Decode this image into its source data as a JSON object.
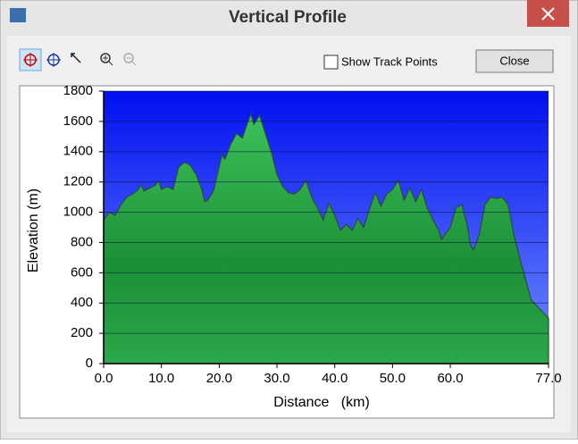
{
  "window": {
    "title": "Vertical Profile",
    "checkbox": "Show Track Points",
    "button": "Close"
  },
  "chart_data": {
    "type": "area",
    "xlabel": "Distance   (km)",
    "ylabel": "Elevation (m)",
    "x": [
      0,
      1,
      2,
      3,
      4,
      5,
      6,
      6.5,
      7,
      8,
      9,
      9.5,
      10,
      11,
      12,
      13,
      14,
      15,
      16,
      17,
      17.5,
      18,
      19,
      20,
      20.5,
      21,
      22,
      23,
      24,
      25,
      25.5,
      26,
      27,
      28,
      29,
      30,
      31,
      32,
      33,
      34,
      35,
      36,
      37,
      38,
      39,
      40,
      41,
      42,
      43,
      44,
      45,
      46,
      47,
      48,
      49,
      50,
      51,
      52,
      53,
      54,
      55,
      56,
      57,
      58,
      58.5,
      59,
      60,
      61,
      62,
      63,
      63.5,
      64,
      65,
      66,
      67,
      68,
      69,
      70,
      71,
      72,
      73,
      74,
      75,
      76,
      77
    ],
    "values": [
      950,
      1000,
      980,
      1050,
      1100,
      1120,
      1150,
      1180,
      1140,
      1160,
      1180,
      1210,
      1150,
      1170,
      1150,
      1300,
      1330,
      1310,
      1250,
      1150,
      1070,
      1080,
      1140,
      1300,
      1380,
      1350,
      1450,
      1520,
      1490,
      1600,
      1650,
      1580,
      1640,
      1520,
      1400,
      1250,
      1170,
      1130,
      1120,
      1150,
      1210,
      1100,
      1030,
      950,
      1060,
      980,
      880,
      920,
      880,
      960,
      900,
      1020,
      1130,
      1040,
      1120,
      1150,
      1210,
      1080,
      1160,
      1070,
      1150,
      1030,
      950,
      880,
      820,
      850,
      900,
      1030,
      1050,
      900,
      780,
      750,
      850,
      1050,
      1100,
      1090,
      1100,
      1050,
      850,
      700,
      560,
      420,
      380,
      340,
      300
    ],
    "color": "#1f9e3e",
    "background": "#0a1cff",
    "xlim": [
      0,
      77
    ],
    "ylim": [
      0,
      1800
    ],
    "xticks": [
      {
        "value": 0,
        "label": "0.0"
      },
      {
        "value": 10,
        "label": "10.0"
      },
      {
        "value": 20,
        "label": "20.0"
      },
      {
        "value": 30,
        "label": "30.0"
      },
      {
        "value": 40,
        "label": "40.0"
      },
      {
        "value": 50,
        "label": "50.0"
      },
      {
        "value": 60,
        "label": "60.0"
      },
      {
        "value": 77,
        "label": "77.0"
      }
    ],
    "yticks": [
      0,
      200,
      400,
      600,
      800,
      1000,
      1200,
      1400,
      1600,
      1800
    ],
    "grid": true
  }
}
